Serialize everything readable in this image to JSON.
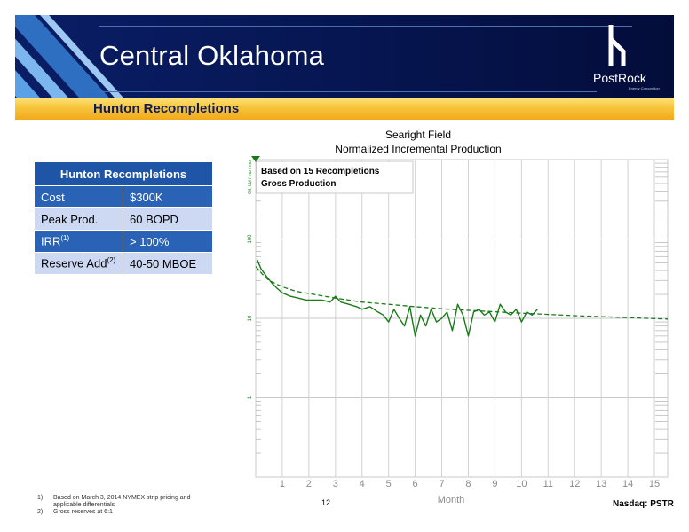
{
  "header": {
    "title": "Central Oklahoma",
    "subtitle": "Hunton Recompletions",
    "logo_text": "PostRock",
    "logo_sub": "Energy Corporation",
    "banner_color": "#0a1e66",
    "subbar_color": "#f7c53c"
  },
  "table": {
    "heading": "Hunton Recompletions",
    "rows": [
      {
        "label": "Cost",
        "sup": "",
        "value": "$300K"
      },
      {
        "label": "Peak Prod.",
        "sup": "",
        "value": "60 BOPD"
      },
      {
        "label": "IRR",
        "sup": "(1)",
        "value": "> 100%"
      },
      {
        "label": "Reserve Add",
        "sup": "(2)",
        "value": "40-50 MBOE"
      }
    ]
  },
  "chart_data": {
    "type": "line",
    "title": "Searight Field",
    "subtitle": "Normalized Incremental Production",
    "annotation": [
      "Based on 15 Recompletions",
      "Gross Production"
    ],
    "xlabel": "Month",
    "ylabel": "Oil, bbl / mo / mo",
    "xlim": [
      0,
      15.5
    ],
    "ylim": [
      0.1,
      1000
    ],
    "yscale": "log",
    "xticks": [
      1,
      2,
      3,
      4,
      5,
      6,
      7,
      8,
      9,
      10,
      11,
      12,
      13,
      14,
      15
    ],
    "yticks": [
      1,
      10,
      100
    ],
    "ytick_labels": [
      "1",
      "10",
      "100"
    ],
    "grid": true,
    "series_color": "#1a7a1a",
    "series": [
      {
        "name": "",
        "style": "solid",
        "x": [
          0.05,
          0.2,
          0.4,
          0.6,
          0.8,
          1.0,
          1.3,
          1.6,
          1.9,
          2.2,
          2.5,
          2.8,
          3.0,
          3.2,
          3.5,
          3.8,
          4.0,
          4.3,
          4.6,
          4.8,
          5.0,
          5.2,
          5.4,
          5.6,
          5.8,
          6.0,
          6.2,
          6.4,
          6.6,
          6.8,
          7.0,
          7.2,
          7.4,
          7.6,
          7.8,
          8.0,
          8.2,
          8.4,
          8.6,
          8.8,
          9.0,
          9.2,
          9.4,
          9.6,
          9.8,
          10.0,
          10.2,
          10.4,
          10.6
        ],
        "y": [
          55,
          42,
          34,
          28,
          24,
          21,
          19,
          18,
          17,
          17,
          17,
          16,
          19,
          16,
          15,
          14,
          13,
          14,
          12,
          11,
          9,
          13,
          10,
          8,
          14,
          6,
          11,
          8,
          13,
          9,
          10,
          12,
          7,
          15,
          11,
          6,
          12,
          13,
          11,
          12,
          9,
          15,
          12,
          11,
          13,
          9,
          12,
          11,
          13
        ]
      },
      {
        "name": "",
        "style": "dashed",
        "x": [
          0,
          0.25,
          0.5,
          1,
          1.5,
          2,
          3,
          4,
          5,
          6,
          7,
          8,
          9,
          10,
          11,
          12,
          13,
          14,
          15.5
        ],
        "y": [
          45,
          36,
          30,
          25,
          22,
          20.5,
          18,
          16,
          15,
          14,
          13.2,
          12.6,
          12.1,
          11.6,
          11.2,
          10.8,
          10.5,
          10.2,
          9.8
        ]
      }
    ]
  },
  "footnotes": [
    {
      "num": "1)",
      "text": "Based on March 3, 2014 NYMEX strip pricing and"
    },
    {
      "num": "",
      "text": "applicable differentials"
    },
    {
      "num": "2)",
      "text": "Gross reserves at 6:1"
    }
  ],
  "page_number": "12",
  "ticker": "Nasdaq: PSTR"
}
